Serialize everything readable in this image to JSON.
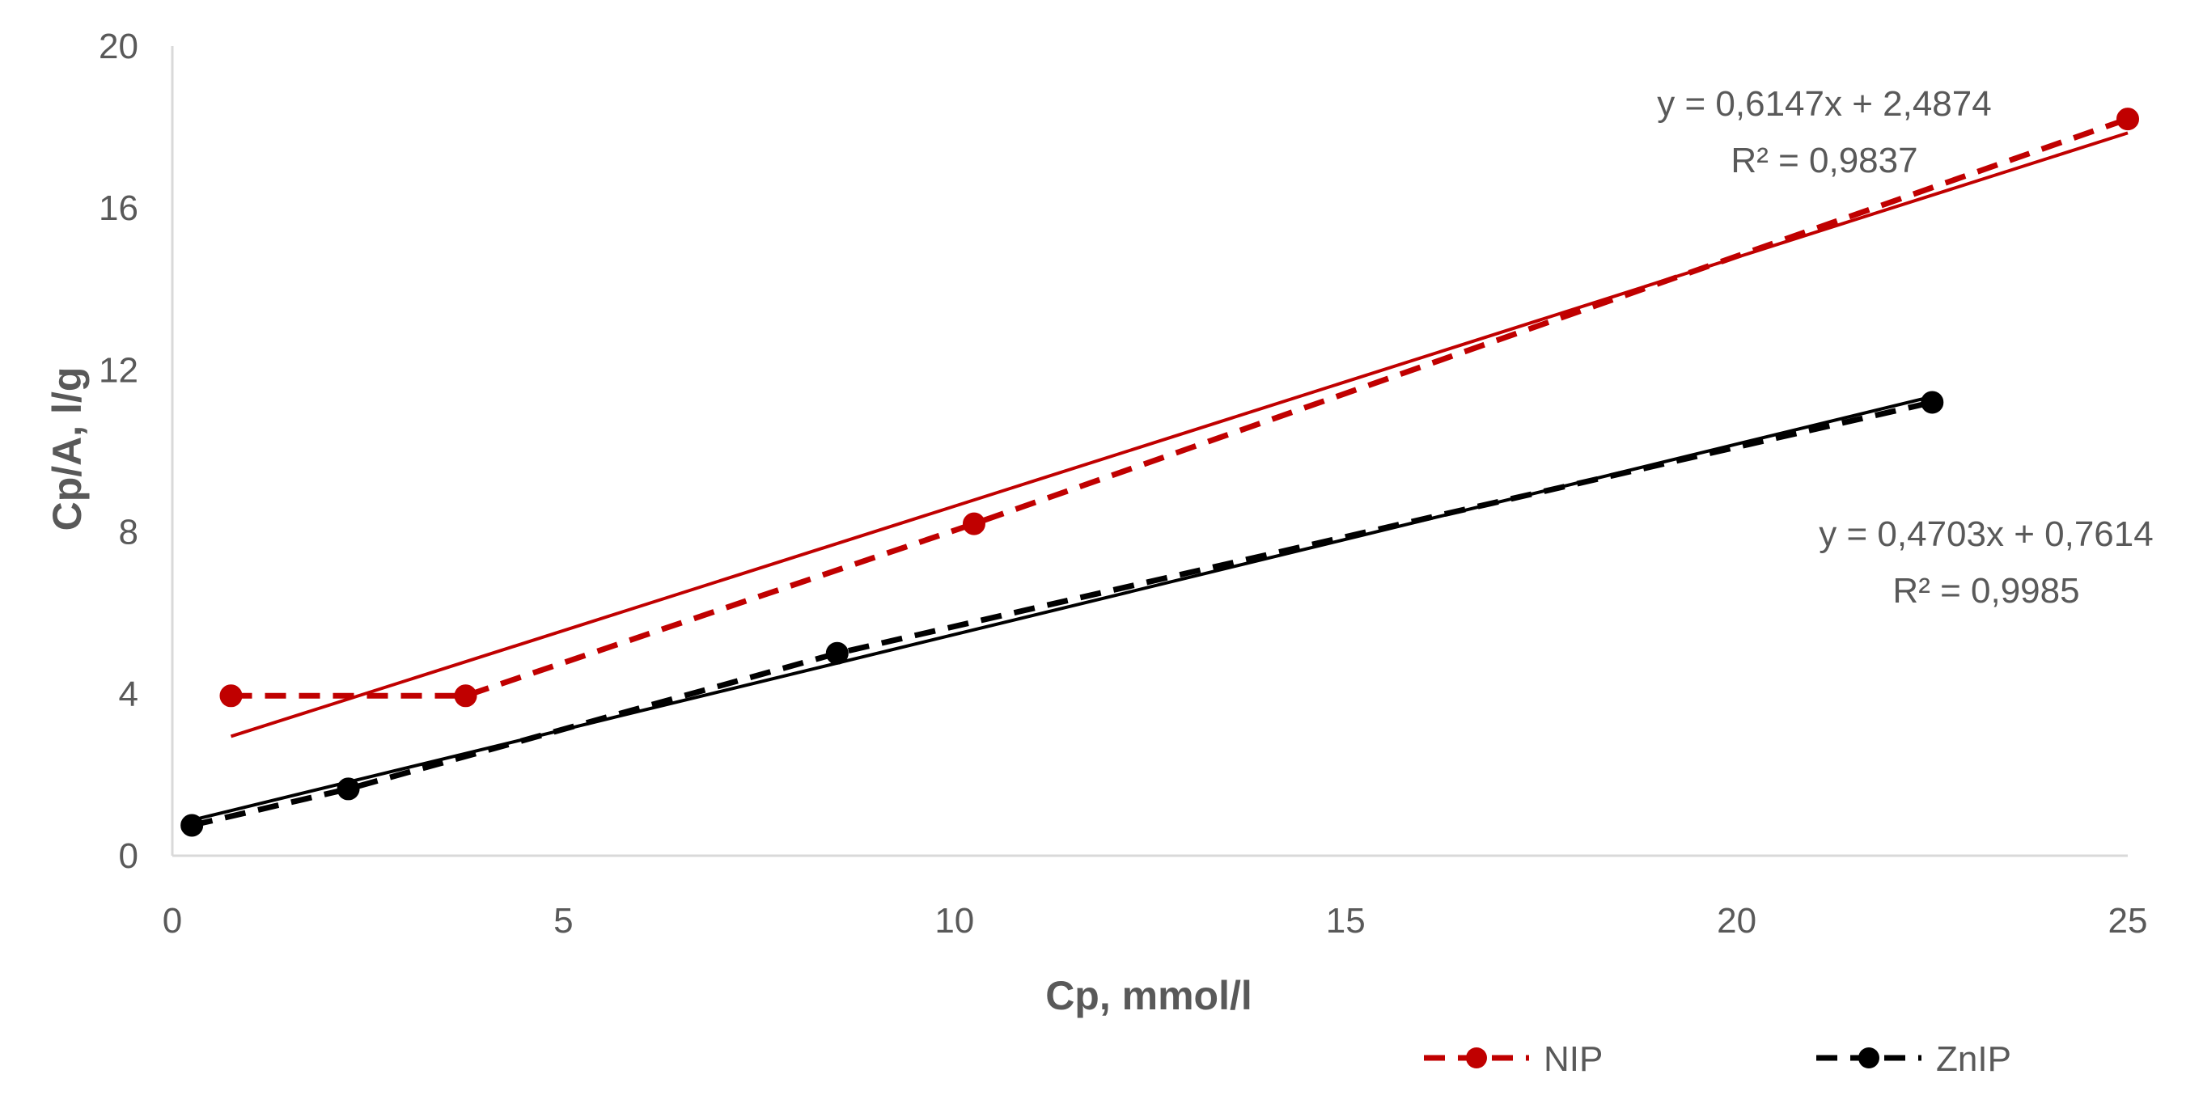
{
  "chart_data": {
    "type": "scatter",
    "title": "",
    "xlabel": "Cp, mmol/l",
    "ylabel": "Cp/A, l/g",
    "xlim": [
      0,
      25
    ],
    "ylim": [
      0,
      20
    ],
    "xticks": [
      0,
      5,
      10,
      15,
      20,
      25
    ],
    "yticks": [
      0,
      4,
      8,
      12,
      16,
      20
    ],
    "grid": false,
    "legend_position": "bottom-right",
    "series": [
      {
        "name": "NIP",
        "color": "#c00000",
        "marker": "circle",
        "line_style": "dashed",
        "x": [
          0.75,
          3.75,
          10.25,
          25.0
        ],
        "y": [
          3.95,
          3.95,
          8.2,
          18.2
        ],
        "trendline": {
          "slope": 0.6147,
          "intercept": 2.4874,
          "x_range": [
            0.75,
            25.0
          ],
          "equation": "y = 0,6147x + 2,4874",
          "r2": "R² = 0,9837"
        }
      },
      {
        "name": "ZnIP",
        "color": "#000000",
        "marker": "circle",
        "line_style": "dashed",
        "x": [
          0.25,
          2.25,
          8.5,
          22.5
        ],
        "y": [
          0.75,
          1.65,
          5.0,
          11.2
        ],
        "trendline": {
          "slope": 0.4703,
          "intercept": 0.7614,
          "x_range": [
            0.25,
            22.5
          ],
          "equation": "y = 0,4703x + 0,7614",
          "r2": "R² = 0,9985"
        }
      }
    ]
  }
}
